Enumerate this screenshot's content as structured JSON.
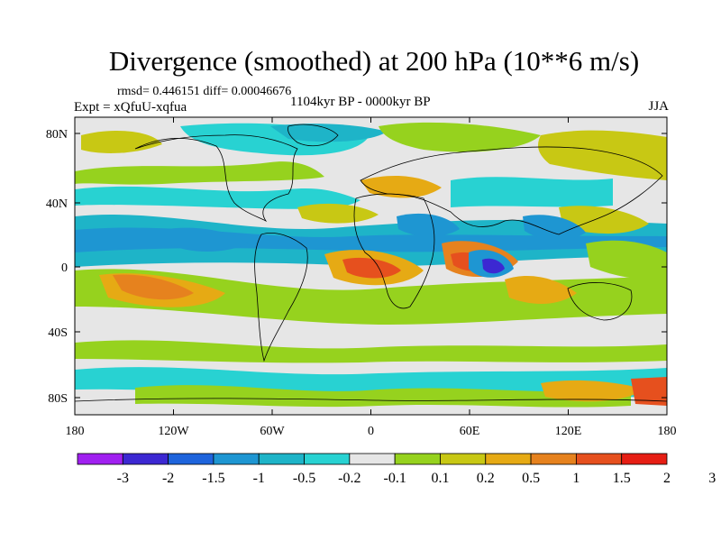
{
  "header": {
    "title": "Divergence (smoothed) at 200 hPa (10**6 m/s)",
    "stats": "rmsd= 0.446151 diff= 0.00046676",
    "experiment": "Expt = xQfuU-xqfua",
    "period": "1104kyr BP - 0000kyr BP",
    "season": "JJA"
  },
  "map": {
    "background_color": "#e6e6e6",
    "lon_ticks": [
      "180",
      "120W",
      "60W",
      "0",
      "60E",
      "120E",
      "180"
    ],
    "lat_ticks": [
      "80N",
      "40N",
      "0",
      "40S",
      "80S"
    ]
  },
  "colorbar": {
    "colors": [
      "#a020f0",
      "#3c28d2",
      "#1e64dc",
      "#1e96d2",
      "#1eb4c8",
      "#28d2d2",
      "#e6e6e6",
      "#96d21e",
      "#c8c814",
      "#e6aa14",
      "#e6821e",
      "#e6501e",
      "#e61e14"
    ],
    "labels": [
      "-3",
      "-2",
      "-1.5",
      "-1",
      "-0.5",
      "-0.2",
      "-0.1",
      "0.1",
      "0.2",
      "0.5",
      "1",
      "1.5",
      "2",
      "3"
    ]
  }
}
